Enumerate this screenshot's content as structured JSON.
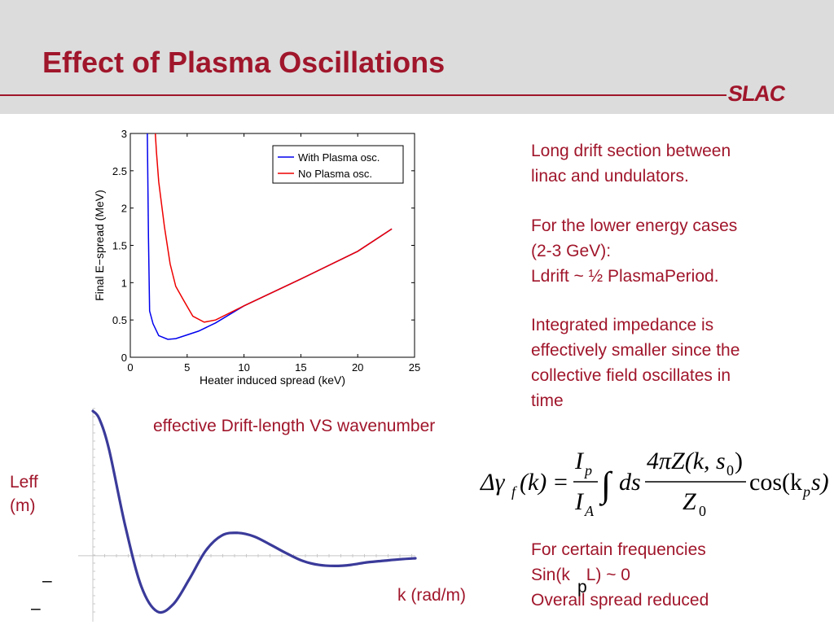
{
  "slide": {
    "title": "Effect of Plasma Oscillations",
    "logo": "SLAC",
    "colors": {
      "accent": "#a0162b",
      "header_bg": "#dcdcdc"
    }
  },
  "right_text": {
    "p1": [
      "Long drift section between",
      "linac and undulators."
    ],
    "p2": [
      "For the lower energy cases",
      "(2-3 GeV):",
      "Ldrift ~ ½ PlasmaPeriod."
    ],
    "p3": [
      "Integrated impedance is",
      "effectively smaller since the",
      "collective field oscillates in",
      "time"
    ],
    "p4": [
      "For certain frequencies",
      "Sin(k",
      "p",
      " L) ~ 0",
      "Overall spread reduced"
    ]
  },
  "equation": {
    "lhs": "Δγ",
    "lhs_sub": "f",
    "lhs_arg": "(k)",
    "eq": "=",
    "ip": "I",
    "ip_sub": "p",
    "ia": "I",
    "ia_sub": "A",
    "integral": "∫",
    "ds": "ds",
    "num": "4πZ(k, s",
    "num_sub": "0",
    "num_end": ")",
    "den": "Z",
    "den_sub": "0",
    "cos": "cos(k",
    "cos_sub": "p",
    "cos_end": "s)"
  },
  "chart_data": [
    {
      "type": "line",
      "title": "",
      "xlabel": "Heater induced spread (keV)",
      "ylabel": "Final E−spread (MeV)",
      "xlim": [
        0,
        25
      ],
      "ylim": [
        0,
        3
      ],
      "xticks": [
        "0",
        "5",
        "10",
        "15",
        "20",
        "25"
      ],
      "yticks": [
        "0",
        "0.5",
        "1",
        "1.5",
        "2",
        "2.5",
        "3"
      ],
      "grid": false,
      "legend_position": "top-right",
      "series": [
        {
          "name": "With Plasma osc.",
          "color": "#0000ee",
          "x": [
            1.5,
            1.6,
            1.7,
            2.0,
            2.5,
            3.3,
            4.0,
            5.0,
            6.0,
            7.5,
            10,
            15,
            20,
            23
          ],
          "y": [
            3.0,
            1.6,
            0.62,
            0.45,
            0.29,
            0.24,
            0.25,
            0.3,
            0.35,
            0.46,
            0.69,
            1.05,
            1.42,
            1.72
          ]
        },
        {
          "name": "No Plasma osc.",
          "color": "#ee0000",
          "x": [
            2.2,
            2.3,
            2.5,
            3.0,
            3.5,
            4.0,
            4.7,
            5.5,
            6.5,
            7.5,
            10,
            15,
            20,
            23
          ],
          "y": [
            3.0,
            2.75,
            2.35,
            1.75,
            1.25,
            0.95,
            0.76,
            0.55,
            0.47,
            0.5,
            0.69,
            1.05,
            1.42,
            1.72
          ]
        }
      ]
    },
    {
      "type": "line",
      "title": "effective Drift-length VS wavenumber",
      "xlabel": "k (rad/m)",
      "ylabel": "Leff (m)",
      "y_tick_marks": [
        "–",
        "–"
      ],
      "color": "#3a3a9a",
      "xlim": [
        0,
        10
      ],
      "ylim": [
        -1.3,
        2.9
      ],
      "series": [
        {
          "name": "",
          "x": [
            0,
            0.2,
            0.5,
            1.0,
            1.5,
            2.0,
            2.5,
            3.0,
            3.5,
            4.0,
            4.5,
            5.0,
            5.5,
            6.0,
            6.5,
            7.0,
            7.5,
            8.0,
            8.5,
            9.0,
            9.5,
            10.0
          ],
          "y": [
            2.85,
            2.7,
            2.1,
            0.6,
            -0.6,
            -1.1,
            -0.95,
            -0.45,
            0.1,
            0.4,
            0.45,
            0.38,
            0.22,
            0.05,
            -0.1,
            -0.18,
            -0.2,
            -0.18,
            -0.13,
            -0.1,
            -0.07,
            -0.05
          ]
        }
      ]
    }
  ]
}
